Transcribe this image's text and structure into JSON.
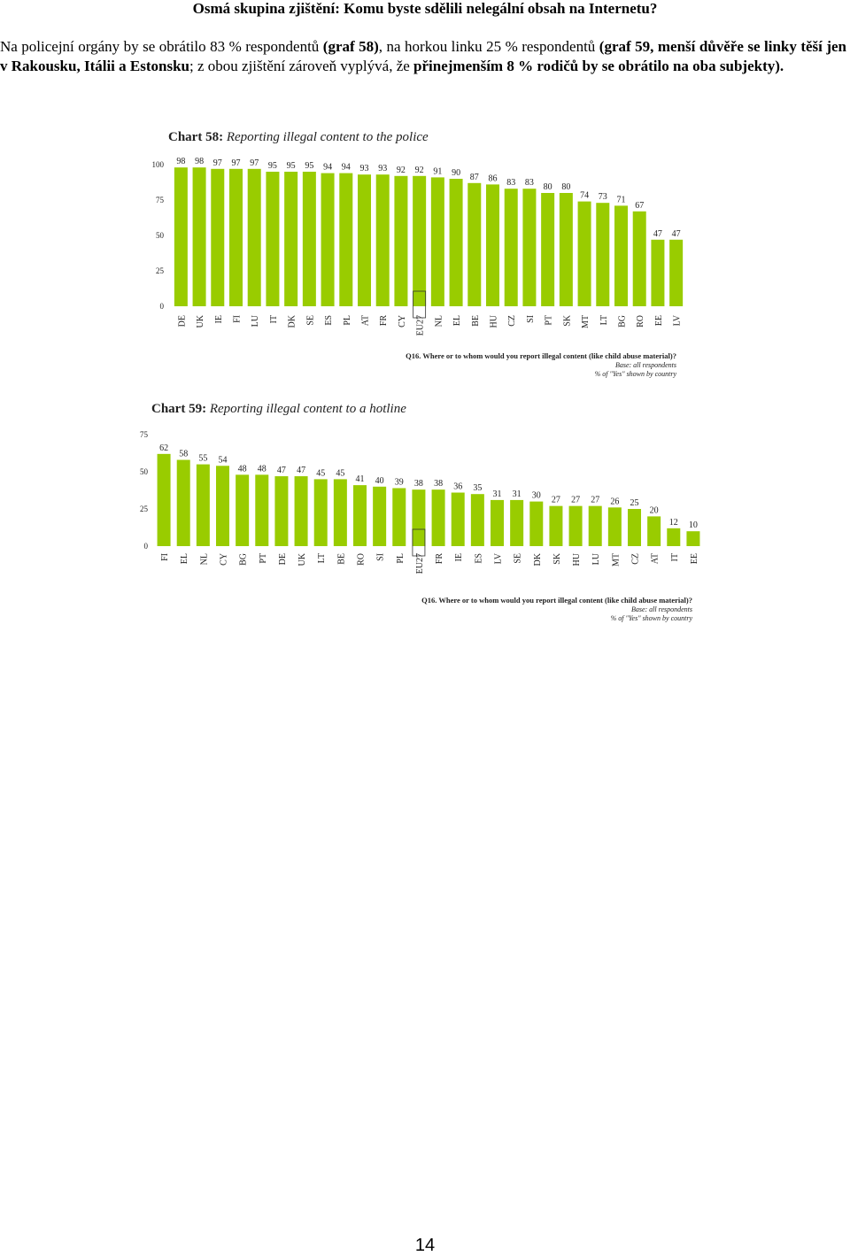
{
  "heading": "Osmá skupina zjištění: Komu byste sdělili nelegální obsah na Internetu?",
  "paragraph": {
    "s1": "Na policejní orgány by se obrátilo 83 % respondentů ",
    "s2": "(graf 58)",
    "s3": ", na horkou linku 25 % respondentů ",
    "s4": "(graf 59, menší důvěře se linky těší jen v Rakousku, Itálii a Estonsku",
    "s5": "; z obou zjištění zároveň vyplývá, že ",
    "s6": "přinejmenším 8 % rodičů by se obrátilo na oba subjekty)."
  },
  "page_number": "14",
  "colors": {
    "bar": "#99cc00",
    "text": "#222222",
    "axis": "#333333"
  },
  "chart_data": [
    {
      "type": "bar",
      "title_prefix": "Chart 58:",
      "title": "Reporting illegal content to the police",
      "categories": [
        "DE",
        "UK",
        "IE",
        "FI",
        "LU",
        "IT",
        "DK",
        "SE",
        "ES",
        "PL",
        "AT",
        "FR",
        "CY",
        "EU27",
        "NL",
        "EL",
        "BE",
        "HU",
        "CZ",
        "SI",
        "PT",
        "SK",
        "MT",
        "LT",
        "BG",
        "RO",
        "EE",
        "LV"
      ],
      "values": [
        98,
        98,
        97,
        97,
        97,
        95,
        95,
        95,
        94,
        94,
        93,
        93,
        92,
        92,
        91,
        90,
        87,
        86,
        83,
        83,
        80,
        80,
        74,
        73,
        71,
        67,
        47,
        47
      ],
      "yticks": [
        0,
        25,
        50,
        75,
        100
      ],
      "ylim": [
        0,
        100
      ],
      "highlight": "EU27",
      "footnote": {
        "question": "Q16. Where or to whom would you report illegal content (like child abuse material)?",
        "base": "Base: all respondents",
        "note": "% of \"Yes\" shown by country"
      }
    },
    {
      "type": "bar",
      "title_prefix": "Chart 59:",
      "title": "Reporting illegal content to a hotline",
      "categories": [
        "FI",
        "EL",
        "NL",
        "CY",
        "BG",
        "PT",
        "DE",
        "UK",
        "LT",
        "BE",
        "RO",
        "SI",
        "PL",
        "EU27",
        "FR",
        "IE",
        "ES",
        "LV",
        "SE",
        "DK",
        "SK",
        "HU",
        "LU",
        "MT",
        "CZ",
        "AT",
        "IT",
        "EE"
      ],
      "values": [
        62,
        58,
        55,
        54,
        48,
        48,
        47,
        47,
        45,
        45,
        41,
        40,
        39,
        38,
        38,
        36,
        35,
        31,
        31,
        30,
        27,
        27,
        27,
        26,
        25,
        20,
        12,
        10
      ],
      "yticks": [
        0,
        25,
        50,
        75
      ],
      "ylim": [
        0,
        75
      ],
      "highlight": "EU27",
      "footnote": {
        "question": "Q16. Where or to whom would you report illegal content (like child abuse material)?",
        "base": "Base: all respondents",
        "note": "% of \"Yes\" shown by country"
      }
    }
  ]
}
